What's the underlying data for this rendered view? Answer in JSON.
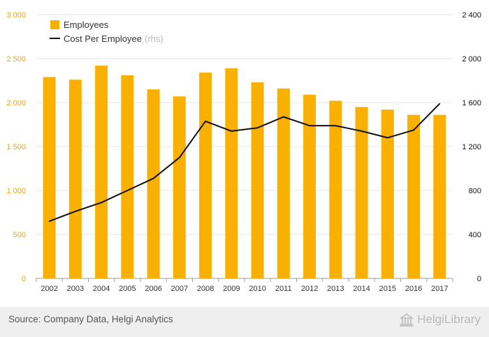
{
  "chart_data": {
    "type": "bar+line",
    "categories": [
      "2002",
      "2003",
      "2004",
      "2005",
      "2006",
      "2007",
      "2008",
      "2009",
      "2010",
      "2011",
      "2012",
      "2013",
      "2014",
      "2015",
      "2016",
      "2017"
    ],
    "series": [
      {
        "name": "Employees",
        "axis": "left",
        "type": "bar",
        "color": "#f9b000",
        "values": [
          2290,
          2260,
          2420,
          2310,
          2150,
          2070,
          2340,
          2390,
          2230,
          2160,
          2090,
          2020,
          1950,
          1920,
          1860,
          1860
        ]
      },
      {
        "name": "Cost Per Employee",
        "axis": "right",
        "type": "line",
        "color": "#111111",
        "values": [
          520,
          610,
          690,
          800,
          910,
          1100,
          1430,
          1340,
          1370,
          1470,
          1390,
          1390,
          1340,
          1280,
          1350,
          1590
        ]
      }
    ],
    "left_axis": {
      "min": 0,
      "max": 3000,
      "ticks": [
        "0",
        "500",
        "1 000",
        "1 500",
        "2 000",
        "2 500",
        "3 000"
      ],
      "tick_color": "#f0a500"
    },
    "right_axis": {
      "min": 0,
      "max": 2400,
      "ticks": [
        "0",
        "400",
        "800",
        "1 200",
        "1 600",
        "2 000",
        "2 400"
      ]
    },
    "legend": {
      "items": [
        {
          "label": "Employees",
          "suffix": ""
        },
        {
          "label": "Cost Per Employee",
          "suffix": "(rhs)"
        }
      ],
      "position": "top-left"
    },
    "grid": true
  },
  "footer": {
    "source": "Source: Company Data, Helgi Analytics",
    "brand": "HelgiLibrary"
  }
}
